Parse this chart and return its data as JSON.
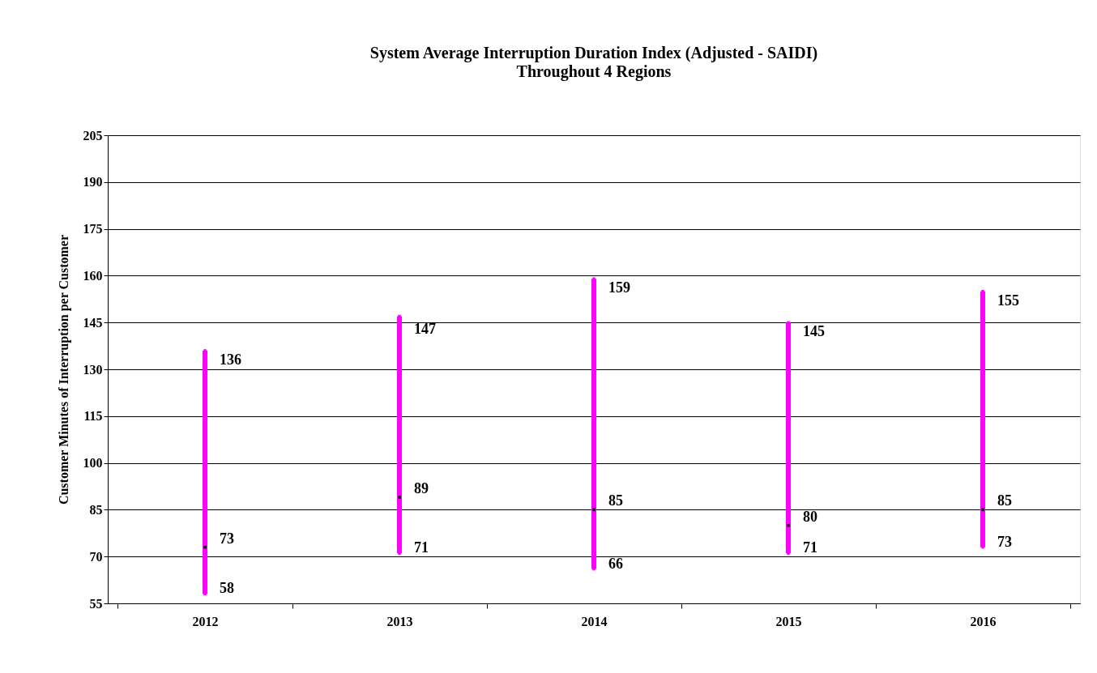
{
  "chart_data": {
    "type": "bar",
    "title": "System Average Interruption Duration Index (Adjusted - SAIDI)",
    "subtitle": "Throughout 4 Regions",
    "ylabel": "Customer Minutes of Interruption per Customer",
    "categories": [
      "2012",
      "2013",
      "2014",
      "2015",
      "2016"
    ],
    "series": [
      {
        "color": "#ff00ff",
        "base": [
          58,
          71,
          66,
          71,
          73
        ],
        "values": [
          78,
          76,
          93,
          74,
          82
        ]
      },
      {
        "type": "scatter",
        "color": "#ff00ff",
        "marker": "square",
        "values": [
          136,
          147,
          159,
          145,
          155
        ],
        "value_labels": [
          "136",
          "147",
          "159",
          "145",
          "155"
        ]
      },
      {
        "type": "scatter",
        "color": "#000000",
        "marker": "square",
        "values": [
          73,
          89,
          85,
          80,
          85
        ],
        "value_labels": [
          "73",
          "89",
          "85",
          "80",
          "85"
        ]
      },
      {
        "type": "scatter",
        "color": "#ff00ff",
        "marker": "square",
        "values": [
          58,
          71,
          66,
          71,
          73
        ],
        "value_labels": [
          "58",
          "71",
          "66",
          "71",
          "73"
        ]
      }
    ],
    "ylim": [
      55,
      205
    ],
    "yticks": [
      55,
      70,
      85,
      100,
      115,
      130,
      145,
      160,
      175,
      190,
      205
    ],
    "grid": "y"
  }
}
